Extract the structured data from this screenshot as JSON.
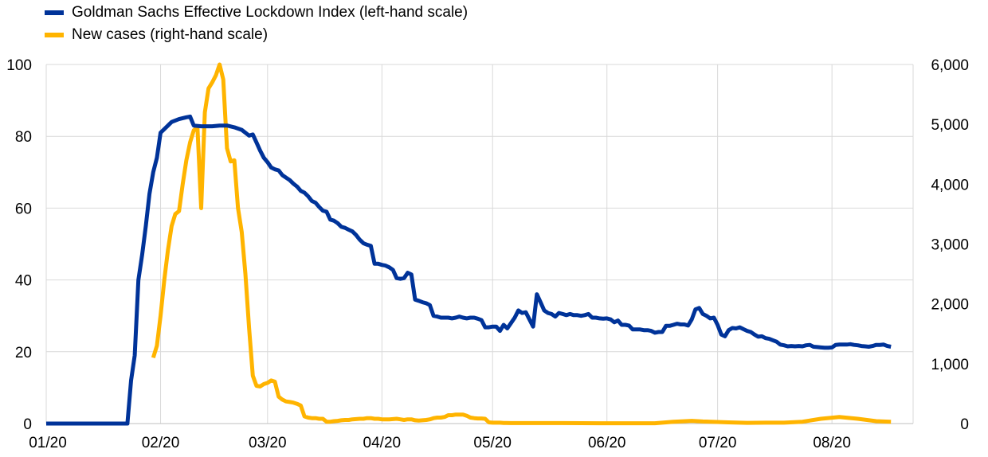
{
  "chart_data": {
    "type": "line",
    "x_tick_labels": [
      "01/20",
      "02/20",
      "03/20",
      "04/20",
      "05/20",
      "06/20",
      "07/20",
      "08/20"
    ],
    "y_left": {
      "ticks": [
        0,
        20,
        40,
        60,
        80,
        100
      ],
      "labels": [
        "0",
        "20",
        "40",
        "60",
        "80",
        "100"
      ],
      "ylim": [
        0,
        100
      ]
    },
    "y_right": {
      "ticks": [
        0,
        1000,
        2000,
        3000,
        4000,
        5000,
        6000
      ],
      "labels": [
        "0",
        "1,000",
        "2,000",
        "3,000",
        "4,000",
        "5,000",
        "6,000"
      ],
      "ylim": [
        0,
        6000
      ]
    },
    "x_range_days": [
      0,
      235
    ],
    "grid": "vertical-and-horizontal",
    "legend_position": "top-left",
    "series": [
      {
        "name": "Goldman Sachs Effective Lockdown Index (left-hand scale)",
        "axis": "left",
        "color": "#003399",
        "points": [
          [
            0,
            0
          ],
          [
            22,
            0
          ],
          [
            23,
            12
          ],
          [
            24,
            19
          ],
          [
            25,
            40
          ],
          [
            26,
            47
          ],
          [
            27,
            55
          ],
          [
            28,
            64
          ],
          [
            29,
            70
          ],
          [
            30,
            74
          ],
          [
            31,
            81
          ],
          [
            32,
            82
          ],
          [
            33,
            83
          ],
          [
            34,
            84
          ],
          [
            36,
            84.8
          ],
          [
            38,
            85.3
          ],
          [
            39,
            85.5
          ],
          [
            40,
            83
          ],
          [
            42,
            82.8
          ],
          [
            45,
            82.8
          ],
          [
            47,
            83
          ],
          [
            49,
            83
          ],
          [
            51,
            82.5
          ],
          [
            53,
            81.8
          ],
          [
            54,
            81
          ],
          [
            55,
            80.2
          ],
          [
            56,
            80.5
          ],
          [
            57,
            78.3
          ],
          [
            58,
            76
          ],
          [
            59,
            74
          ],
          [
            60,
            72.8
          ],
          [
            61,
            71.3
          ],
          [
            62,
            70.8
          ],
          [
            63,
            70.5
          ],
          [
            64,
            69.2
          ],
          [
            65,
            68.5
          ],
          [
            66,
            67.8
          ],
          [
            67,
            66.8
          ],
          [
            68,
            66
          ],
          [
            69,
            64.8
          ],
          [
            70,
            64.3
          ],
          [
            71,
            63.3
          ],
          [
            72,
            62
          ],
          [
            73,
            61.5
          ],
          [
            74,
            60.3
          ],
          [
            75,
            59.3
          ],
          [
            76,
            59
          ],
          [
            77,
            56.8
          ],
          [
            78,
            56.5
          ],
          [
            79,
            55.8
          ],
          [
            80,
            54.8
          ],
          [
            81,
            54.5
          ],
          [
            82,
            54
          ],
          [
            83,
            53.5
          ],
          [
            84,
            52.5
          ],
          [
            85,
            51.2
          ],
          [
            86,
            50.2
          ],
          [
            87,
            49.8
          ],
          [
            88,
            49.5
          ],
          [
            89,
            44.5
          ],
          [
            90,
            44.5
          ],
          [
            91,
            44.2
          ],
          [
            92,
            44
          ],
          [
            93,
            43.5
          ],
          [
            94,
            42.8
          ],
          [
            95,
            40.5
          ],
          [
            96,
            40.3
          ],
          [
            97,
            40.5
          ],
          [
            98,
            42
          ],
          [
            99,
            41.5
          ],
          [
            100,
            34.5
          ],
          [
            101,
            34.2
          ],
          [
            102,
            33.8
          ],
          [
            103,
            33.5
          ],
          [
            104,
            33
          ],
          [
            105,
            30
          ],
          [
            106,
            29.8
          ],
          [
            107,
            29.5
          ],
          [
            108,
            29.5
          ],
          [
            109,
            29.5
          ],
          [
            110,
            29.3
          ],
          [
            111,
            29.5
          ],
          [
            112,
            29.8
          ],
          [
            113,
            29.5
          ],
          [
            114,
            29.3
          ],
          [
            115,
            29.5
          ],
          [
            116,
            29.5
          ],
          [
            117,
            29.2
          ],
          [
            118,
            28.8
          ],
          [
            119,
            26.8
          ],
          [
            120,
            26.8
          ],
          [
            121,
            27
          ],
          [
            122,
            27
          ],
          [
            123,
            25.8
          ],
          [
            124,
            27.5
          ],
          [
            125,
            26.5
          ],
          [
            126,
            28
          ],
          [
            127,
            29.5
          ],
          [
            128,
            31.5
          ],
          [
            129,
            30.8
          ],
          [
            130,
            31
          ],
          [
            131,
            29
          ],
          [
            132,
            27
          ],
          [
            133,
            36
          ],
          [
            134,
            33.8
          ],
          [
            135,
            31.5
          ],
          [
            136,
            30.8
          ],
          [
            137,
            30.5
          ],
          [
            138,
            29.8
          ],
          [
            139,
            30.8
          ],
          [
            140,
            30.5
          ],
          [
            141,
            30.2
          ],
          [
            142,
            30.5
          ],
          [
            143,
            30.2
          ],
          [
            144,
            30.2
          ],
          [
            145,
            30
          ],
          [
            146,
            30.2
          ],
          [
            147,
            30.5
          ],
          [
            148,
            29.5
          ],
          [
            149,
            29.5
          ],
          [
            150,
            29.3
          ],
          [
            151,
            29.2
          ],
          [
            152,
            29.3
          ],
          [
            153,
            29
          ],
          [
            154,
            28.2
          ],
          [
            155,
            28.7
          ],
          [
            156,
            27.5
          ],
          [
            157,
            27.5
          ],
          [
            158,
            27.3
          ],
          [
            159,
            26.2
          ],
          [
            160,
            26.2
          ],
          [
            161,
            26.2
          ],
          [
            162,
            26
          ],
          [
            163,
            26
          ],
          [
            164,
            25.8
          ],
          [
            165,
            25.3
          ],
          [
            166,
            25.5
          ],
          [
            167,
            25.5
          ],
          [
            168,
            27.2
          ],
          [
            169,
            27.2
          ],
          [
            170,
            27.5
          ],
          [
            171,
            27.8
          ],
          [
            172,
            27.6
          ],
          [
            173,
            27.6
          ],
          [
            174,
            27.3
          ],
          [
            175,
            29
          ],
          [
            176,
            31.8
          ],
          [
            177,
            32.2
          ],
          [
            178,
            30.5
          ],
          [
            179,
            30
          ],
          [
            180,
            29.3
          ],
          [
            181,
            29.5
          ],
          [
            182,
            27.5
          ],
          [
            183,
            24.8
          ],
          [
            184,
            24.3
          ],
          [
            185,
            26
          ],
          [
            186,
            26.6
          ],
          [
            187,
            26.5
          ],
          [
            188,
            26.8
          ],
          [
            189,
            26.3
          ],
          [
            190,
            25.8
          ],
          [
            191,
            25.5
          ],
          [
            192,
            24.8
          ],
          [
            193,
            24.2
          ],
          [
            194,
            24.3
          ],
          [
            195,
            23.8
          ],
          [
            196,
            23.6
          ],
          [
            197,
            23.2
          ],
          [
            198,
            22.8
          ],
          [
            199,
            22
          ],
          [
            200,
            21.8
          ],
          [
            201,
            21.5
          ],
          [
            202,
            21.6
          ],
          [
            203,
            21.5
          ],
          [
            204,
            21.6
          ],
          [
            205,
            21.5
          ],
          [
            206,
            21.8
          ],
          [
            207,
            21.9
          ],
          [
            208,
            21.4
          ],
          [
            209,
            21.3
          ],
          [
            210,
            21.2
          ],
          [
            211,
            21.1
          ],
          [
            212,
            21.1
          ],
          [
            213,
            21.2
          ],
          [
            214,
            21.9
          ],
          [
            215,
            22
          ],
          [
            216,
            22
          ],
          [
            217,
            22
          ],
          [
            218,
            22.1
          ],
          [
            219,
            21.9
          ],
          [
            220,
            21.8
          ],
          [
            221,
            21.6
          ],
          [
            222,
            21.5
          ],
          [
            223,
            21.4
          ],
          [
            224,
            21.6
          ],
          [
            225,
            21.9
          ],
          [
            226,
            21.9
          ],
          [
            227,
            22
          ],
          [
            228,
            21.6
          ],
          [
            229,
            21.4
          ]
        ]
      },
      {
        "name": "New cases (right-hand scale)",
        "axis": "right",
        "color": "#ffb400",
        "points": [
          [
            29,
            1100
          ],
          [
            30,
            1300
          ],
          [
            31,
            1800
          ],
          [
            32,
            2400
          ],
          [
            33,
            2900
          ],
          [
            34,
            3300
          ],
          [
            35,
            3500
          ],
          [
            36,
            3550
          ],
          [
            37,
            4000
          ],
          [
            38,
            4400
          ],
          [
            39,
            4700
          ],
          [
            40,
            4900
          ],
          [
            41,
            4950
          ],
          [
            42,
            3600
          ],
          [
            43,
            5200
          ],
          [
            44,
            5600
          ],
          [
            45,
            5700
          ],
          [
            46,
            5820
          ],
          [
            47,
            6000
          ],
          [
            48,
            5750
          ],
          [
            49,
            4600
          ],
          [
            50,
            4380
          ],
          [
            51,
            4400
          ],
          [
            52,
            3600
          ],
          [
            53,
            3200
          ],
          [
            54,
            2500
          ],
          [
            55,
            1600
          ],
          [
            56,
            800
          ],
          [
            57,
            630
          ],
          [
            58,
            620
          ],
          [
            59,
            660
          ],
          [
            60,
            680
          ],
          [
            61,
            720
          ],
          [
            62,
            700
          ],
          [
            63,
            450
          ],
          [
            64,
            400
          ],
          [
            65,
            370
          ],
          [
            66,
            360
          ],
          [
            67,
            350
          ],
          [
            68,
            330
          ],
          [
            69,
            300
          ],
          [
            70,
            120
          ],
          [
            71,
            100
          ],
          [
            72,
            90
          ],
          [
            73,
            90
          ],
          [
            74,
            80
          ],
          [
            75,
            80
          ],
          [
            76,
            30
          ],
          [
            77,
            30
          ],
          [
            78,
            40
          ],
          [
            79,
            45
          ],
          [
            80,
            55
          ],
          [
            81,
            60
          ],
          [
            82,
            60
          ],
          [
            83,
            70
          ],
          [
            84,
            75
          ],
          [
            85,
            80
          ],
          [
            86,
            80
          ],
          [
            87,
            90
          ],
          [
            88,
            90
          ],
          [
            89,
            80
          ],
          [
            90,
            80
          ],
          [
            91,
            70
          ],
          [
            92,
            70
          ],
          [
            93,
            70
          ],
          [
            94,
            75
          ],
          [
            95,
            80
          ],
          [
            96,
            70
          ],
          [
            97,
            60
          ],
          [
            98,
            70
          ],
          [
            99,
            70
          ],
          [
            100,
            55
          ],
          [
            101,
            50
          ],
          [
            102,
            55
          ],
          [
            103,
            60
          ],
          [
            104,
            70
          ],
          [
            105,
            90
          ],
          [
            106,
            100
          ],
          [
            107,
            100
          ],
          [
            108,
            110
          ],
          [
            109,
            140
          ],
          [
            110,
            140
          ],
          [
            111,
            150
          ],
          [
            112,
            150
          ],
          [
            113,
            150
          ],
          [
            114,
            130
          ],
          [
            115,
            100
          ],
          [
            116,
            90
          ],
          [
            117,
            85
          ],
          [
            118,
            85
          ],
          [
            119,
            80
          ],
          [
            120,
            20
          ],
          [
            121,
            15
          ],
          [
            122,
            15
          ],
          [
            123,
            15
          ],
          [
            124,
            10
          ],
          [
            126,
            8
          ],
          [
            130,
            8
          ],
          [
            135,
            8
          ],
          [
            140,
            8
          ],
          [
            145,
            6
          ],
          [
            150,
            5
          ],
          [
            160,
            5
          ],
          [
            165,
            5
          ],
          [
            170,
            30
          ],
          [
            175,
            45
          ],
          [
            178,
            35
          ],
          [
            185,
            20
          ],
          [
            190,
            12
          ],
          [
            195,
            15
          ],
          [
            200,
            15
          ],
          [
            205,
            30
          ],
          [
            210,
            80
          ],
          [
            215,
            110
          ],
          [
            220,
            80
          ],
          [
            225,
            40
          ],
          [
            229,
            30
          ]
        ]
      }
    ]
  }
}
